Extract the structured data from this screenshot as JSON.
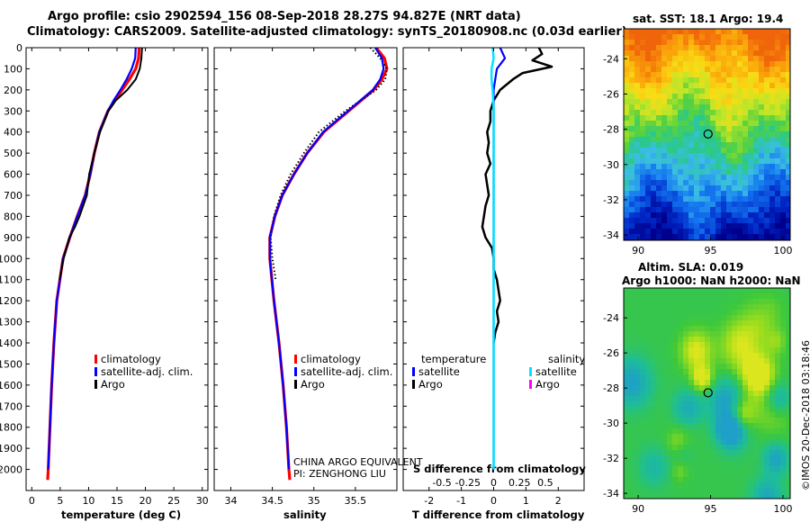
{
  "title_line1": "Argo profile: csio 2902594_156 08-Sep-2018 28.27S 94.827E (NRT data)",
  "title_line2": "Climatology: CARS2009. Satellite-adjusted climatology: synTS_20180908.nc (0.03d earlier)",
  "sst_title": "sat. SST: 18.1 Argo: 19.4",
  "sla_line1": "Altim. SLA: 0.019",
  "sla_line2": "Argo h1000: NaN h2000: NaN",
  "institution_line1": "CHINA ARGO EQUIVALENT",
  "institution_line2": "PI: ZENGHONG LIU",
  "credit": "©IMOS 20-Dec-2018 03:18:46",
  "colors": {
    "climatology": "#ff0000",
    "satellite": "#0000ff",
    "argo": "#000000",
    "satellite_salinity": "#00e5ff",
    "argo_salinity": "#ff00ff"
  },
  "chart_data": [
    {
      "type": "line",
      "name": "temperature_profile",
      "xlabel": "temperature (deg C)",
      "xlim": [
        -1,
        31
      ],
      "xticks": [
        0,
        5,
        10,
        15,
        20,
        25,
        30
      ],
      "ylim": [
        2100,
        0
      ],
      "yticks": [
        0,
        100,
        200,
        300,
        400,
        500,
        600,
        700,
        800,
        900,
        1000,
        1100,
        1200,
        1300,
        1400,
        1500,
        1600,
        1700,
        1800,
        1900,
        2000
      ],
      "legend": [
        "climatology",
        "satellite-adj. clim.",
        "Argo"
      ],
      "series": [
        {
          "name": "climatology",
          "depth": [
            0,
            50,
            100,
            150,
            200,
            250,
            300,
            400,
            500,
            600,
            700,
            800,
            900,
            1000,
            1200,
            1400,
            1600,
            1800,
            2000,
            2050
          ],
          "values": [
            18.9,
            18.8,
            18.3,
            17.2,
            15.9,
            14.6,
            13.4,
            11.9,
            11.0,
            10.3,
            9.4,
            8.0,
            6.7,
            5.5,
            4.4,
            3.9,
            3.5,
            3.2,
            2.9,
            2.8
          ]
        },
        {
          "name": "satellite-adj. clim.",
          "depth": [
            0,
            50,
            100,
            150,
            200,
            250,
            300,
            400,
            500,
            600,
            700,
            800,
            900,
            1000,
            1200,
            1400,
            1600,
            1800,
            2000
          ],
          "values": [
            18.3,
            18.2,
            17.6,
            16.7,
            15.6,
            14.4,
            13.4,
            11.9,
            11.0,
            10.3,
            9.4,
            8.0,
            6.7,
            5.5,
            4.4,
            3.9,
            3.5,
            3.2,
            2.9
          ]
        },
        {
          "name": "Argo",
          "depth": [
            0,
            50,
            100,
            150,
            200,
            250,
            300,
            400,
            500,
            600,
            700,
            800,
            850,
            900,
            1000,
            1100
          ],
          "values": [
            19.4,
            19.3,
            19.0,
            18.3,
            16.8,
            14.8,
            13.5,
            12.0,
            11.0,
            10.1,
            9.7,
            8.4,
            7.6,
            6.6,
            5.6,
            4.9
          ]
        }
      ]
    },
    {
      "type": "line",
      "name": "salinity_profile",
      "xlabel": "salinity",
      "xlim": [
        33.8,
        36.0
      ],
      "xticks": [
        34,
        34.5,
        35,
        35.5
      ],
      "ylim": [
        2100,
        0
      ],
      "legend": [
        "climatology",
        "satellite-adj. clim.",
        "Argo"
      ],
      "series": [
        {
          "name": "climatology",
          "depth": [
            0,
            50,
            100,
            150,
            200,
            300,
            400,
            500,
            600,
            700,
            800,
            900,
            1000,
            1200,
            1400,
            1600,
            1800,
            2000,
            2050
          ],
          "values": [
            35.75,
            35.85,
            35.88,
            35.82,
            35.72,
            35.42,
            35.12,
            34.92,
            34.76,
            34.62,
            34.53,
            34.47,
            34.47,
            34.52,
            34.58,
            34.63,
            34.67,
            34.7,
            34.71
          ]
        },
        {
          "name": "satellite-adj. clim.",
          "depth": [
            0,
            50,
            100,
            150,
            200,
            300,
            400,
            500,
            600,
            700,
            800,
            900,
            1000,
            1200,
            1400,
            1600,
            1800,
            2000
          ],
          "values": [
            35.74,
            35.82,
            35.84,
            35.8,
            35.71,
            35.41,
            35.11,
            34.92,
            34.76,
            34.62,
            34.53,
            34.47,
            34.47,
            34.52,
            34.58,
            34.63,
            34.67,
            34.7
          ]
        },
        {
          "name": "Argo",
          "depth": [
            0,
            50,
            100,
            150,
            200,
            300,
            400,
            500,
            600,
            700,
            800,
            900,
            1000,
            1100
          ],
          "values": [
            35.68,
            35.8,
            35.88,
            35.86,
            35.75,
            35.38,
            35.06,
            34.88,
            34.72,
            34.6,
            34.52,
            34.48,
            34.5,
            34.54
          ]
        }
      ]
    },
    {
      "type": "line",
      "name": "difference_profile",
      "xlabel": "T difference from climatology",
      "xlabel_top": "S difference from climatology",
      "xlim": [
        -2.8,
        2.8
      ],
      "xticks": [
        -2,
        -1,
        0,
        1,
        2
      ],
      "xticks_top": [
        -0.5,
        -0.25,
        0,
        0.25,
        0.5
      ],
      "ylim": [
        2100,
        0
      ],
      "legend_temperature_title": "temperature",
      "legend_salinity_title": "salinity",
      "legend_labels": [
        "satellite",
        "Argo"
      ],
      "series": [
        {
          "name": "T satellite",
          "depth": [
            0,
            50,
            100,
            150,
            200,
            300,
            400,
            600,
            800,
            1000,
            1200,
            1400,
            1600,
            1800,
            2000
          ],
          "values": [
            0.2,
            0.35,
            0.1,
            0.05,
            0.0,
            0.0,
            0.0,
            0.0,
            0.0,
            0.0,
            0.0,
            0.0,
            0.0,
            0.0,
            0.0
          ]
        },
        {
          "name": "T Argo",
          "depth": [
            0,
            30,
            60,
            90,
            120,
            150,
            200,
            250,
            300,
            350,
            400,
            450,
            500,
            550,
            600,
            650,
            700,
            750,
            800,
            850,
            900,
            950,
            1000,
            1050,
            1100,
            1150,
            1200,
            1250,
            1300,
            1350,
            1400
          ],
          "values": [
            1.4,
            1.5,
            1.2,
            1.8,
            0.9,
            0.6,
            0.2,
            0.0,
            -0.1,
            -0.1,
            -0.2,
            -0.15,
            -0.2,
            -0.1,
            -0.25,
            -0.2,
            -0.15,
            -0.25,
            -0.3,
            -0.35,
            -0.25,
            -0.05,
            0.0,
            0.0,
            0.1,
            0.15,
            0.2,
            0.1,
            0.15,
            0.05,
            0.0
          ]
        },
        {
          "name": "S satellite",
          "depth": [
            0,
            50,
            100,
            150,
            200,
            300,
            400,
            600,
            800,
            1000,
            1200,
            1400,
            1600,
            1800,
            2000
          ],
          "values": [
            -0.01,
            0.0,
            -0.02,
            -0.02,
            -0.01,
            0.0,
            0.0,
            0.0,
            0.0,
            0.0,
            0.0,
            0.0,
            0.0,
            0.0,
            0.0
          ]
        }
      ]
    },
    {
      "type": "heatmap",
      "name": "sst_map",
      "title": "sat. SST: 18.1 Argo: 19.4",
      "xlim": [
        89,
        100.5
      ],
      "ylim": [
        -34.3,
        -22.3
      ],
      "xticks": [
        90,
        95,
        100
      ],
      "yticks": [
        -24,
        -26,
        -28,
        -30,
        -32,
        -34
      ],
      "marker": {
        "lon": 94.827,
        "lat": -28.27
      }
    },
    {
      "type": "heatmap",
      "name": "sla_map",
      "title": "Altim. SLA: 0.019",
      "xlim": [
        89,
        100.5
      ],
      "ylim": [
        -34.3,
        -22.3
      ],
      "xticks": [
        90,
        95,
        100
      ],
      "yticks": [
        -24,
        -26,
        -28,
        -30,
        -32,
        -34
      ],
      "marker": {
        "lon": 94.827,
        "lat": -28.27
      }
    }
  ]
}
